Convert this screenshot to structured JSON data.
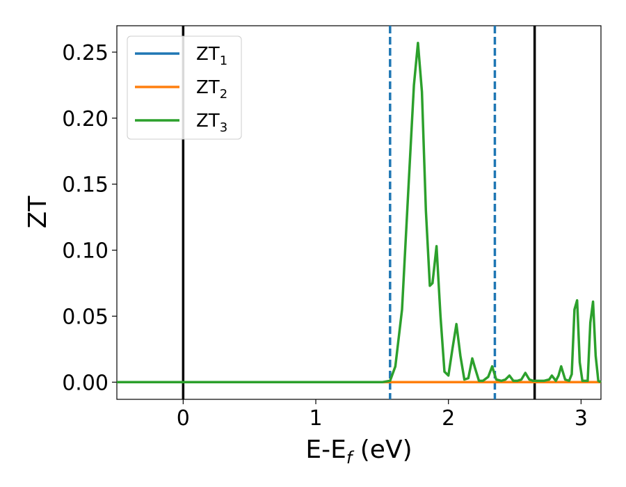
{
  "chart_data": {
    "type": "line",
    "xlabel": "E-E",
    "xlabel_sub": "f",
    "xlabel_unit": " (eV)",
    "ylabel": "ZT",
    "xlim": [
      -0.5,
      3.15
    ],
    "ylim": [
      -0.013,
      0.27
    ],
    "x_ticks": [
      0,
      1,
      2,
      3
    ],
    "x_tick_labels": [
      "0",
      "1",
      "2",
      "3"
    ],
    "y_ticks": [
      0.0,
      0.05,
      0.1,
      0.15,
      0.2,
      0.25
    ],
    "y_tick_labels": [
      "0.00",
      "0.05",
      "0.10",
      "0.15",
      "0.20",
      "0.25"
    ],
    "grid": false,
    "legend_position": "top-left",
    "vlines": [
      {
        "x": 0.0,
        "style": "solid",
        "color": "#000000"
      },
      {
        "x": 1.56,
        "style": "dashed",
        "color": "#1f77b4"
      },
      {
        "x": 2.35,
        "style": "dashed",
        "color": "#1f77b4"
      },
      {
        "x": 2.65,
        "style": "solid",
        "color": "#000000"
      }
    ],
    "series": [
      {
        "name": "ZT",
        "sub": "1",
        "color": "#1f77b4",
        "x": [
          -0.5,
          3.15
        ],
        "y": [
          0.0,
          0.0
        ]
      },
      {
        "name": "ZT",
        "sub": "2",
        "color": "#ff7f0e",
        "x": [
          -0.5,
          3.15
        ],
        "y": [
          0.0,
          0.0
        ]
      },
      {
        "name": "ZT",
        "sub": "3",
        "color": "#2ca02c",
        "x": [
          -0.5,
          1.5,
          1.56,
          1.6,
          1.65,
          1.7,
          1.74,
          1.77,
          1.8,
          1.83,
          1.86,
          1.88,
          1.91,
          1.94,
          1.97,
          2.0,
          2.03,
          2.06,
          2.09,
          2.12,
          2.15,
          2.18,
          2.2,
          2.23,
          2.26,
          2.3,
          2.33,
          2.36,
          2.4,
          2.43,
          2.46,
          2.49,
          2.52,
          2.55,
          2.58,
          2.61,
          2.64,
          2.67,
          2.72,
          2.76,
          2.78,
          2.81,
          2.83,
          2.85,
          2.88,
          2.91,
          2.93,
          2.95,
          2.97,
          2.99,
          3.01,
          3.03,
          3.05,
          3.07,
          3.09,
          3.11,
          3.13,
          3.15
        ],
        "y": [
          0.0,
          0.0,
          0.001,
          0.012,
          0.055,
          0.15,
          0.225,
          0.257,
          0.22,
          0.13,
          0.073,
          0.075,
          0.103,
          0.05,
          0.008,
          0.005,
          0.025,
          0.044,
          0.02,
          0.002,
          0.003,
          0.018,
          0.011,
          0.001,
          0.001,
          0.004,
          0.012,
          0.002,
          0.001,
          0.002,
          0.005,
          0.001,
          0.001,
          0.002,
          0.007,
          0.002,
          0.001,
          0.001,
          0.001,
          0.002,
          0.005,
          0.001,
          0.005,
          0.012,
          0.002,
          0.001,
          0.006,
          0.055,
          0.062,
          0.015,
          0.001,
          0.001,
          0.001,
          0.045,
          0.061,
          0.02,
          0.001,
          0.0
        ]
      }
    ]
  }
}
